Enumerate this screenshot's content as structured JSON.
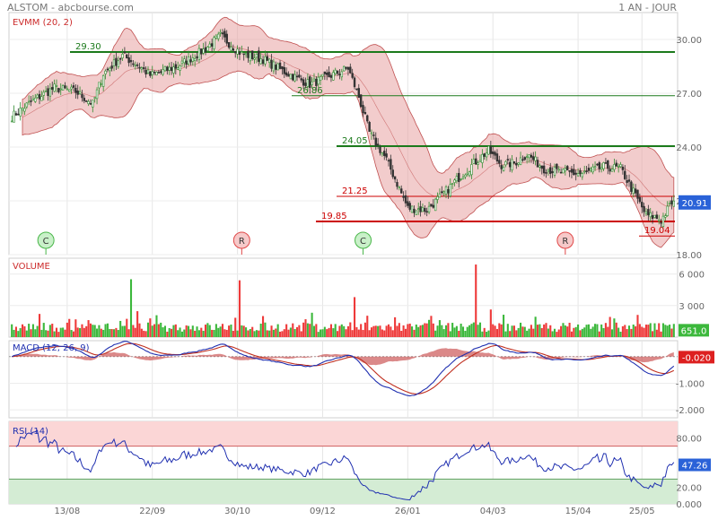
{
  "header": {
    "left_title": "ALSTOM - abcbourse.com",
    "right_title": "1 AN - JOUR"
  },
  "colors": {
    "up": "#3a9a3a",
    "down": "#e53b3b",
    "band": "#e8a3a3",
    "support_green": "#1b7a1b",
    "support_red": "#cc0000",
    "macd_line": "#2030b0",
    "signal_line": "#c03020",
    "rsi_line": "#2030b0",
    "price_badge": "#2a62d8"
  },
  "chart_data": [
    {
      "type": "candlestick",
      "name": "price",
      "label": "EVMM (20, 2)",
      "ylim": [
        18,
        31.5
      ],
      "y_ticks": [
        "30.00",
        "27.00",
        "24.00",
        "21.00",
        "18.00"
      ],
      "y_tick_values": [
        30,
        27,
        24,
        21,
        18
      ],
      "x_ticks": [
        "13/08",
        "22/09",
        "30/10",
        "09/12",
        "26/01",
        "04/03",
        "15/04",
        "25/05"
      ],
      "last_value": "20.91",
      "close_path": [
        [
          0,
          25.7
        ],
        [
          10,
          26.6
        ],
        [
          20,
          27.3
        ],
        [
          30,
          27.1
        ],
        [
          38,
          26.4
        ],
        [
          43,
          28.1
        ],
        [
          52,
          29.1
        ],
        [
          60,
          28.5
        ],
        [
          65,
          28.0
        ],
        [
          78,
          28.5
        ],
        [
          90,
          29.4
        ],
        [
          98,
          30.2
        ],
        [
          108,
          29.2
        ],
        [
          118,
          28.9
        ],
        [
          128,
          28.2
        ],
        [
          140,
          27.5
        ],
        [
          150,
          28.0
        ],
        [
          158,
          28.4
        ],
        [
          163,
          26.8
        ],
        [
          168,
          24.8
        ],
        [
          176,
          23.3
        ],
        [
          182,
          21.7
        ],
        [
          186,
          20.6
        ],
        [
          195,
          20.5
        ],
        [
          202,
          21.3
        ],
        [
          210,
          22.3
        ],
        [
          218,
          23.2
        ],
        [
          224,
          23.8
        ],
        [
          230,
          23.0
        ],
        [
          236,
          23.1
        ],
        [
          242,
          23.6
        ],
        [
          250,
          22.8
        ],
        [
          258,
          22.6
        ],
        [
          268,
          22.5
        ],
        [
          278,
          22.9
        ],
        [
          286,
          22.8
        ],
        [
          292,
          21.5
        ],
        [
          298,
          20.2
        ],
        [
          302,
          20.1
        ],
        [
          305,
          19.9
        ],
        [
          310,
          20.9
        ]
      ],
      "levels": [
        {
          "label": "29.30",
          "value": 29.3,
          "color": "green"
        },
        {
          "label": "26.86",
          "value": 26.86,
          "color": "green"
        },
        {
          "label": "24.05",
          "value": 24.05,
          "color": "green"
        },
        {
          "label": "21.25",
          "value": 21.25,
          "color": "red"
        },
        {
          "label": "19.85",
          "value": 19.85,
          "color": "red"
        },
        {
          "label": "19.04",
          "value": 19.04,
          "color": "red"
        }
      ],
      "markers": [
        {
          "label": "C",
          "x": 16,
          "color": "green"
        },
        {
          "label": "R",
          "x": 108,
          "color": "red"
        },
        {
          "label": "C",
          "x": 165,
          "color": "green"
        },
        {
          "label": "R",
          "x": 260,
          "color": "red"
        }
      ]
    },
    {
      "type": "bar",
      "name": "volume",
      "label": "VOLUME",
      "ylim": [
        0,
        7500000
      ],
      "y_ticks": [
        "6 000",
        "3 000"
      ],
      "y_tick_values": [
        6000000,
        3000000
      ],
      "last_value": "651.0",
      "spikes": [
        [
          56,
          5500000
        ],
        [
          107,
          5400000
        ],
        [
          161,
          3800000
        ],
        [
          218,
          6900000
        ]
      ]
    },
    {
      "type": "line",
      "name": "macd",
      "label": "MACD (12, 26, 9)",
      "ylim": [
        -2.3,
        0.6
      ],
      "y_ticks": [
        "-1.000",
        "-2.000"
      ],
      "y_tick_values": [
        -1,
        -2
      ],
      "last_value": "-0.020",
      "series": [
        {
          "name": "MACD",
          "role": "macd"
        },
        {
          "name": "Signal",
          "role": "signal"
        }
      ]
    },
    {
      "type": "line",
      "name": "rsi",
      "label": "RSI (14)",
      "ylim": [
        0,
        100
      ],
      "y_ticks": [
        "80.00",
        "20.00",
        "0.000"
      ],
      "y_tick_values": [
        80,
        20,
        0
      ],
      "bands": {
        "upper": 70,
        "lower": 30
      },
      "last_value": "47.26"
    }
  ]
}
